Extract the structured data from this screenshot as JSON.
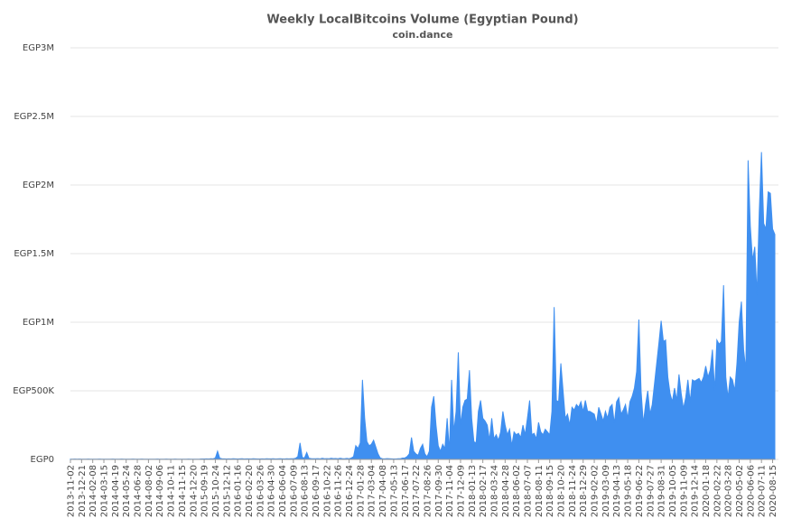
{
  "chart_data": {
    "type": "area",
    "title": "Weekly LocalBitcoins Volume (Egyptian Pound)",
    "subtitle": "coin.dance",
    "color": "#3f8ff0",
    "grid": true,
    "ylim": [
      0,
      3000000
    ],
    "yticks": [
      {
        "value": 0,
        "label": "EGP0"
      },
      {
        "value": 500000,
        "label": "EGP500K"
      },
      {
        "value": 1000000,
        "label": "EGP1M"
      },
      {
        "value": 1500000,
        "label": "EGP1.5M"
      },
      {
        "value": 2000000,
        "label": "EGP2M"
      },
      {
        "value": 2500000,
        "label": "EGP2.5M"
      },
      {
        "value": 3000000,
        "label": "EGP3M"
      }
    ],
    "categories": [
      "2013-11-02",
      null,
      null,
      null,
      null,
      "2013-12-21",
      null,
      null,
      null,
      null,
      "2014-02-08",
      null,
      null,
      null,
      null,
      "2014-03-15",
      null,
      null,
      null,
      null,
      "2014-04-19",
      null,
      null,
      null,
      null,
      "2014-05-24",
      null,
      null,
      null,
      null,
      "2014-06-28",
      null,
      null,
      null,
      null,
      "2014-08-02",
      null,
      null,
      null,
      null,
      "2014-09-06",
      null,
      null,
      null,
      null,
      "2014-10-11",
      null,
      null,
      null,
      null,
      "2014-11-15",
      null,
      null,
      null,
      null,
      "2014-12-20",
      null,
      null,
      null,
      null,
      "2015-09-19",
      null,
      null,
      null,
      null,
      "2015-10-24",
      null,
      null,
      null,
      null,
      "2015-12-12",
      null,
      null,
      null,
      null,
      "2016-01-16",
      null,
      null,
      null,
      null,
      "2016-02-20",
      null,
      null,
      null,
      null,
      "2016-03-26",
      null,
      null,
      null,
      null,
      "2016-04-30",
      null,
      null,
      null,
      null,
      "2016-06-04",
      null,
      null,
      null,
      null,
      "2016-07-09",
      null,
      null,
      null,
      null,
      "2016-08-13",
      null,
      null,
      null,
      null,
      "2016-09-17",
      null,
      null,
      null,
      null,
      "2016-10-22",
      null,
      null,
      null,
      null,
      "2016-11-26",
      null,
      null,
      null,
      null,
      "2016-12-24",
      null,
      null,
      null,
      null,
      "2017-01-28",
      null,
      null,
      null,
      null,
      "2017-03-04",
      null,
      null,
      null,
      null,
      "2017-04-08",
      null,
      null,
      null,
      null,
      "2017-05-13",
      null,
      null,
      null,
      null,
      "2017-06-17",
      null,
      null,
      null,
      null,
      "2017-07-22",
      null,
      null,
      null,
      null,
      "2017-08-26",
      null,
      null,
      null,
      null,
      "2017-09-30",
      null,
      null,
      null,
      null,
      "2017-11-04",
      null,
      null,
      null,
      null,
      "2017-12-09",
      null,
      null,
      null,
      null,
      "2018-01-13",
      null,
      null,
      null,
      null,
      "2018-02-17",
      null,
      null,
      null,
      null,
      "2018-03-24",
      null,
      null,
      null,
      null,
      "2018-04-28",
      null,
      null,
      null,
      null,
      "2018-06-02",
      null,
      null,
      null,
      null,
      "2018-07-07",
      null,
      null,
      null,
      null,
      "2018-08-11",
      null,
      null,
      null,
      null,
      "2018-09-15",
      null,
      null,
      null,
      null,
      "2018-10-20",
      null,
      null,
      null,
      null,
      "2018-11-24",
      null,
      null,
      null,
      null,
      "2018-12-29",
      null,
      null,
      null,
      null,
      "2019-02-02",
      null,
      null,
      null,
      null,
      "2019-03-09",
      null,
      null,
      null,
      null,
      "2019-04-13",
      null,
      null,
      null,
      null,
      "2019-05-18",
      null,
      null,
      null,
      null,
      "2019-06-22",
      null,
      null,
      null,
      null,
      "2019-07-27",
      null,
      null,
      null,
      null,
      "2019-08-31",
      null,
      null,
      null,
      null,
      "2019-10-05",
      null,
      null,
      null,
      null,
      "2019-11-09",
      null,
      null,
      null,
      null,
      "2019-12-14",
      null,
      null,
      null,
      null,
      "2020-01-18",
      null,
      null,
      null,
      null,
      "2020-02-22",
      null,
      null,
      null,
      null,
      "2020-03-28",
      null,
      null,
      null,
      null,
      "2020-05-02",
      null,
      null,
      null,
      null,
      "2020-06-06",
      null,
      null,
      null,
      null,
      "2020-07-11",
      null,
      null,
      null,
      null,
      "2020-08-15",
      null
    ],
    "values": [
      2000,
      1500,
      2500,
      1800,
      2200,
      1500,
      2000,
      1800,
      2500,
      1500,
      2000,
      1800,
      1500,
      2200,
      2000,
      1500,
      1800,
      2000,
      1500,
      2200,
      2000,
      1500,
      1800,
      2200,
      1500,
      1800,
      2000,
      1500,
      2500,
      2000,
      1500,
      1800,
      2200,
      1500,
      2000,
      2000,
      1800,
      1500,
      2000,
      2200,
      1500,
      2000,
      1800,
      2200,
      1500,
      2000,
      1500,
      2200,
      1800,
      2000,
      1800,
      2000,
      1500,
      2500,
      1800,
      2000,
      1500,
      1800,
      2200,
      3000,
      3000,
      4000,
      3000,
      5000,
      4000,
      10000,
      60000,
      8000,
      5000,
      4000,
      3000,
      4000,
      3000,
      5000,
      4000,
      3000,
      4000,
      5000,
      3000,
      4000,
      4000,
      3000,
      5000,
      4000,
      3000,
      3000,
      4000,
      3000,
      5000,
      4000,
      4000,
      5000,
      3000,
      4000,
      5000,
      4000,
      3000,
      5000,
      4000,
      5000,
      5000,
      8000,
      20000,
      120000,
      15000,
      10000,
      50000,
      8000,
      6000,
      5000,
      5000,
      6000,
      4000,
      8000,
      5000,
      6000,
      5000,
      8000,
      6000,
      7000,
      5000,
      8000,
      6000,
      5000,
      7000,
      5000,
      10000,
      20000,
      100000,
      80000,
      120000,
      580000,
      300000,
      130000,
      100000,
      110000,
      140000,
      90000,
      40000,
      10000,
      5000,
      4000,
      6000,
      5000,
      4000,
      3000,
      3000,
      5000,
      5000,
      10000,
      10000,
      20000,
      40000,
      160000,
      60000,
      40000,
      30000,
      80000,
      110000,
      40000,
      20000,
      60000,
      380000,
      460000,
      250000,
      100000,
      60000,
      110000,
      80000,
      300000,
      60000,
      580000,
      200000,
      350000,
      780000,
      250000,
      380000,
      430000,
      440000,
      650000,
      300000,
      130000,
      120000,
      350000,
      430000,
      300000,
      280000,
      250000,
      140000,
      300000,
      150000,
      180000,
      140000,
      200000,
      350000,
      250000,
      180000,
      220000,
      100000,
      200000,
      180000,
      190000,
      160000,
      250000,
      180000,
      300000,
      430000,
      180000,
      190000,
      150000,
      270000,
      200000,
      180000,
      220000,
      200000,
      180000,
      350000,
      1110000,
      430000,
      420000,
      700000,
      500000,
      300000,
      330000,
      250000,
      380000,
      360000,
      400000,
      380000,
      420000,
      350000,
      430000,
      350000,
      350000,
      340000,
      330000,
      260000,
      380000,
      330000,
      280000,
      350000,
      300000,
      380000,
      400000,
      260000,
      420000,
      450000,
      330000,
      360000,
      400000,
      300000,
      420000,
      460000,
      520000,
      640000,
      1020000,
      500000,
      260000,
      400000,
      500000,
      330000,
      400000,
      550000,
      700000,
      850000,
      1010000,
      860000,
      870000,
      600000,
      480000,
      420000,
      520000,
      430000,
      620000,
      480000,
      370000,
      450000,
      580000,
      420000,
      580000,
      570000,
      580000,
      590000,
      560000,
      600000,
      680000,
      600000,
      650000,
      800000,
      500000,
      870000,
      840000,
      860000,
      1270000,
      600000,
      450000,
      600000,
      580000,
      500000,
      700000,
      1000000,
      1150000,
      800000,
      650000,
      2180000,
      1700000,
      1450000,
      1550000,
      1200000,
      1800000,
      2240000,
      1720000,
      1680000,
      1950000,
      1940000,
      1680000,
      1640000
    ]
  }
}
